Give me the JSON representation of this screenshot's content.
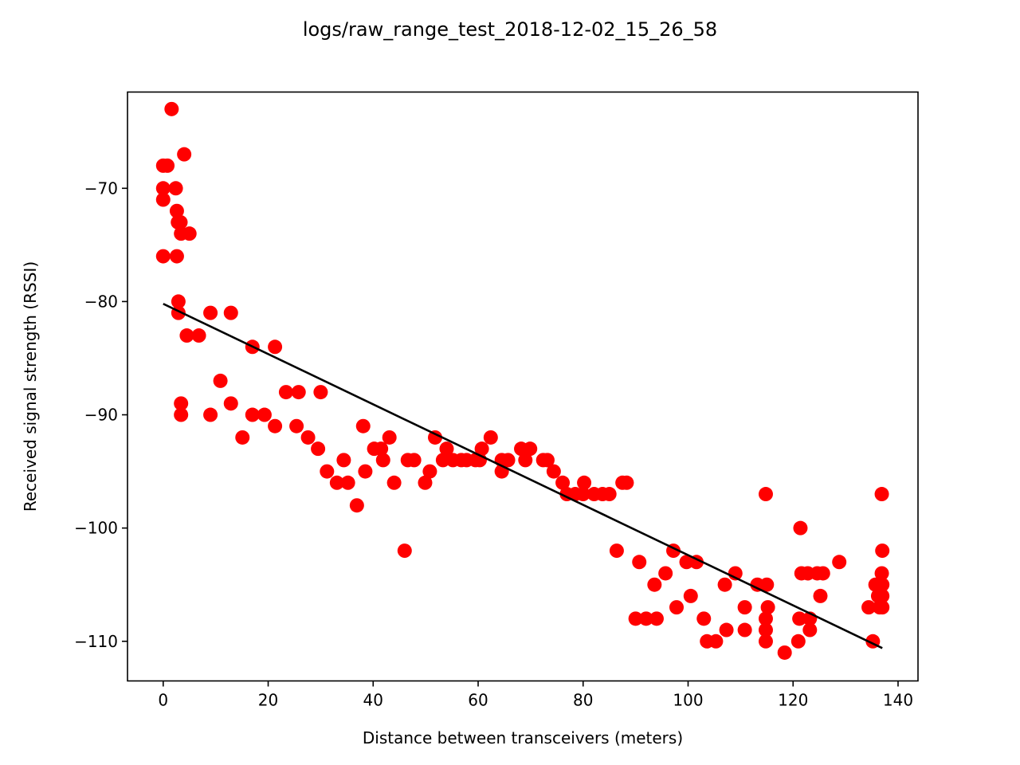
{
  "chart_data": {
    "type": "scatter",
    "title": "logs/raw_range_test_2018-12-02_15_26_58",
    "xlabel": "Distance between transceivers (meters)",
    "ylabel": "Received signal strength (RSSI)",
    "xlim": [
      -6.8,
      143.8
    ],
    "ylim": [
      -113.5,
      -61.5
    ],
    "x_ticks": [
      0,
      20,
      40,
      60,
      80,
      100,
      120,
      140
    ],
    "y_ticks": [
      -110,
      -100,
      -90,
      -80,
      -70
    ],
    "x_tick_labels": [
      "0",
      "20",
      "40",
      "60",
      "80",
      "100",
      "120",
      "140"
    ],
    "y_tick_labels": [
      "−110",
      "−100",
      "−90",
      "−80",
      "−70"
    ],
    "grid": false,
    "series": [
      {
        "kind": "scatter",
        "color": "#ff0000",
        "points": [
          [
            0,
            -68
          ],
          [
            0.8,
            -68
          ],
          [
            0,
            -70
          ],
          [
            0,
            -71
          ],
          [
            0,
            -76
          ],
          [
            1.6,
            -63
          ],
          [
            2.4,
            -70
          ],
          [
            2.6,
            -72
          ],
          [
            2.8,
            -73
          ],
          [
            3.3,
            -73
          ],
          [
            3.4,
            -74
          ],
          [
            4,
            -67
          ],
          [
            5,
            -74
          ],
          [
            2.6,
            -76
          ],
          [
            2.9,
            -80
          ],
          [
            2.9,
            -81
          ],
          [
            4.5,
            -83
          ],
          [
            6.8,
            -83
          ],
          [
            3.4,
            -89
          ],
          [
            3.4,
            -90
          ],
          [
            9,
            -81
          ],
          [
            9,
            -90
          ],
          [
            10.9,
            -87
          ],
          [
            12.9,
            -81
          ],
          [
            12.9,
            -89
          ],
          [
            15.1,
            -92
          ],
          [
            17,
            -84
          ],
          [
            17,
            -90
          ],
          [
            19.3,
            -90
          ],
          [
            21.3,
            -84
          ],
          [
            21.3,
            -91
          ],
          [
            23.4,
            -88
          ],
          [
            25.4,
            -91
          ],
          [
            25.8,
            -88
          ],
          [
            27.6,
            -92
          ],
          [
            29.5,
            -93
          ],
          [
            30,
            -88
          ],
          [
            31.2,
            -95
          ],
          [
            33.1,
            -96
          ],
          [
            34.4,
            -94
          ],
          [
            35.2,
            -96
          ],
          [
            36.9,
            -98
          ],
          [
            38.1,
            -91
          ],
          [
            38.5,
            -95
          ],
          [
            40.2,
            -93
          ],
          [
            41.5,
            -93
          ],
          [
            41.9,
            -94
          ],
          [
            43.1,
            -92
          ],
          [
            44,
            -96
          ],
          [
            46,
            -102
          ],
          [
            46.6,
            -94
          ],
          [
            47.8,
            -94
          ],
          [
            49.9,
            -96
          ],
          [
            50.8,
            -95
          ],
          [
            51.8,
            -92
          ],
          [
            53.3,
            -94
          ],
          [
            54,
            -93
          ],
          [
            55.2,
            -94
          ],
          [
            56.8,
            -94
          ],
          [
            57.8,
            -94
          ],
          [
            59.5,
            -94
          ],
          [
            60.3,
            -94
          ],
          [
            60.7,
            -93
          ],
          [
            62.4,
            -92
          ],
          [
            64.5,
            -95
          ],
          [
            64.5,
            -94
          ],
          [
            65.7,
            -94
          ],
          [
            68.2,
            -93
          ],
          [
            69,
            -94
          ],
          [
            69.9,
            -93
          ],
          [
            72.4,
            -94
          ],
          [
            73.2,
            -94
          ],
          [
            74.4,
            -95
          ],
          [
            76.1,
            -96
          ],
          [
            76.9,
            -97
          ],
          [
            78.5,
            -97
          ],
          [
            80,
            -97
          ],
          [
            80.2,
            -96
          ],
          [
            82.1,
            -97
          ],
          [
            83.7,
            -97
          ],
          [
            85,
            -97
          ],
          [
            86.4,
            -102
          ],
          [
            87.5,
            -96
          ],
          [
            88.3,
            -96
          ],
          [
            90,
            -108
          ],
          [
            90.7,
            -103
          ],
          [
            92,
            -108
          ],
          [
            93.6,
            -105
          ],
          [
            94,
            -108
          ],
          [
            95.7,
            -104
          ],
          [
            97.2,
            -102
          ],
          [
            97.8,
            -107
          ],
          [
            99.7,
            -103
          ],
          [
            100.5,
            -106
          ],
          [
            101.6,
            -103
          ],
          [
            103,
            -108
          ],
          [
            103.6,
            -110
          ],
          [
            105.3,
            -110
          ],
          [
            107,
            -105
          ],
          [
            107.3,
            -109
          ],
          [
            109,
            -104
          ],
          [
            110.8,
            -107
          ],
          [
            110.8,
            -109
          ],
          [
            113.2,
            -105
          ],
          [
            114.8,
            -97
          ],
          [
            115,
            -105
          ],
          [
            114.8,
            -108
          ],
          [
            114.8,
            -109
          ],
          [
            114.8,
            -110
          ],
          [
            115.2,
            -107
          ],
          [
            118.4,
            -111
          ],
          [
            121.4,
            -100
          ],
          [
            121.2,
            -108
          ],
          [
            121,
            -110
          ],
          [
            121.6,
            -104
          ],
          [
            122.8,
            -104
          ],
          [
            123.2,
            -108
          ],
          [
            123.2,
            -109
          ],
          [
            124.6,
            -104
          ],
          [
            125.2,
            -106
          ],
          [
            125.7,
            -104
          ],
          [
            128.8,
            -103
          ],
          [
            134.4,
            -107
          ],
          [
            135.2,
            -110
          ],
          [
            135.7,
            -105
          ],
          [
            136.2,
            -106
          ],
          [
            136.5,
            -107
          ],
          [
            136.9,
            -104
          ],
          [
            136.9,
            -97
          ],
          [
            137,
            -102
          ],
          [
            137,
            -105
          ],
          [
            137,
            -106
          ],
          [
            137,
            -107
          ]
        ]
      },
      {
        "kind": "line",
        "color": "#000000",
        "points": [
          [
            0,
            -80.2
          ],
          [
            137,
            -110.6
          ]
        ]
      }
    ]
  }
}
